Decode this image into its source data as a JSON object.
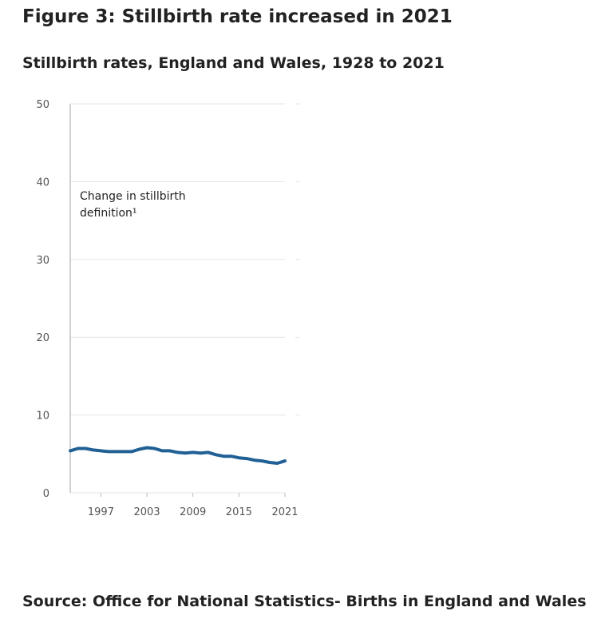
{
  "figure": {
    "title": "Figure 3: Stillbirth rate increased in 2021",
    "source": "Source: Office for National Statistics- Births in England and Wales"
  },
  "chart_data": {
    "type": "line",
    "title": "Stillbirth rates, England and Wales, 1928 to 2021",
    "xlabel": "",
    "ylabel": "",
    "ylim": [
      0,
      50
    ],
    "y_ticks": [
      0,
      10,
      20,
      30,
      40,
      50
    ],
    "x_ticks": [
      1997,
      2003,
      2009,
      2015,
      2021
    ],
    "xlim": [
      1993,
      2021
    ],
    "grid": true,
    "series": [
      {
        "color": "#206095",
        "x": [
          1993,
          1994,
          1995,
          1996,
          1997,
          1998,
          1999,
          2000,
          2001,
          2002,
          2003,
          2004,
          2005,
          2006,
          2007,
          2008,
          2009,
          2010,
          2011,
          2012,
          2013,
          2014,
          2015,
          2016,
          2017,
          2018,
          2019,
          2020,
          2021
        ],
        "y": [
          5.4,
          5.7,
          5.7,
          5.5,
          5.4,
          5.3,
          5.3,
          5.3,
          5.3,
          5.6,
          5.8,
          5.7,
          5.4,
          5.4,
          5.2,
          5.1,
          5.2,
          5.1,
          5.2,
          4.9,
          4.7,
          4.7,
          4.5,
          4.4,
          4.2,
          4.1,
          3.9,
          3.8,
          4.1
        ]
      }
    ],
    "annotation": {
      "lines": [
        "Change in stillbirth",
        "definition¹"
      ]
    },
    "colors": {
      "line": "#206095",
      "grid": "#e4e4e4",
      "reference_line": "#d0d0d0"
    }
  }
}
